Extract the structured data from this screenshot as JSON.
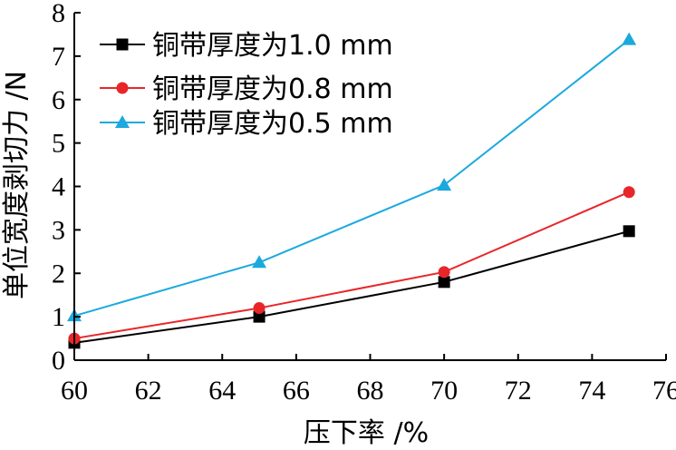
{
  "chart_data": {
    "type": "line",
    "xlabel": "压下率 /%",
    "ylabel": "单位宽度剥切力 /N",
    "xlim": [
      60,
      76
    ],
    "ylim": [
      0,
      8
    ],
    "xticks": [
      "60",
      "62",
      "64",
      "66",
      "68",
      "70",
      "72",
      "74",
      "76"
    ],
    "yticks": [
      "0",
      "1",
      "2",
      "3",
      "4",
      "5",
      "6",
      "7",
      "8"
    ],
    "grid": false,
    "legend_position": "top-left",
    "x": [
      60,
      65,
      70,
      75
    ],
    "series": [
      {
        "name": "铜带厚度为1.0 mm",
        "values": [
          0.4,
          1.0,
          1.8,
          2.97
        ],
        "color": "#000000",
        "marker": "square"
      },
      {
        "name": "铜带厚度为0.8 mm",
        "values": [
          0.5,
          1.2,
          2.03,
          3.87
        ],
        "color": "#e8262a",
        "marker": "circle"
      },
      {
        "name": "铜带厚度为0.5 mm",
        "values": [
          1.02,
          2.25,
          4.03,
          7.38
        ],
        "color": "#1ba9de",
        "marker": "triangle"
      }
    ]
  }
}
